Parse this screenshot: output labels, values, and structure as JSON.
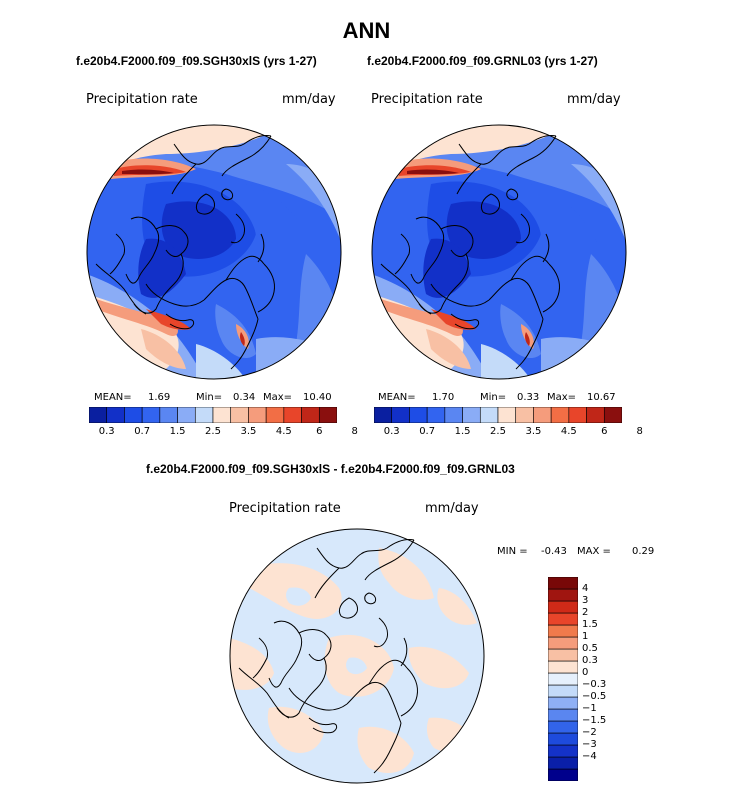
{
  "header": {
    "title": "ANN",
    "subtitle_left": "f.e20b4.F2000.f09_f09.SGH30xlS (yrs 1-27)",
    "subtitle_right": "f.e20b4.F2000.f09_f09.GRNL03 (yrs 1-27)",
    "diff_title": "f.e20b4.F2000.f09_f09.SGH30xlS - f.e20b4.F2000.f09_f09.GRNL03"
  },
  "panels": [
    {
      "field": "Precipitation rate",
      "units": "mm/day",
      "stats": {
        "mean_label": "MEAN=",
        "mean": "1.69",
        "min_label": "Min=",
        "min": "0.34",
        "max_label": "Max=",
        "max": "10.40"
      }
    },
    {
      "field": "Precipitation rate",
      "units": "mm/day",
      "stats": {
        "mean_label": "MEAN=",
        "mean": "1.70",
        "min_label": "Min=",
        "min": "0.33",
        "max_label": "Max=",
        "max": "10.67"
      }
    }
  ],
  "diff_panel": {
    "field": "Precipitation rate",
    "units": "mm/day",
    "minmax": {
      "min_label": "MIN =",
      "min": "-0.43",
      "max_label": "MAX =",
      "max": "0.29"
    }
  },
  "colorbar_top": {
    "colors": [
      "#0a1fa0",
      "#1230c8",
      "#1e4de6",
      "#3264f0",
      "#5a86f2",
      "#8aacf6",
      "#c4dbf9",
      "#fde3d2",
      "#f8c0a4",
      "#f59c7c",
      "#f26e45",
      "#e8452a",
      "#c02618",
      "#8a0f0e"
    ],
    "labels": [
      "0.3",
      "0.7",
      "1.5",
      "2.5",
      "3.5",
      "4.5",
      "6",
      "8"
    ]
  },
  "colorbar_diff": {
    "colors": [
      "#00008c",
      "#0a1fa8",
      "#1432c8",
      "#1e4bdc",
      "#3264ea",
      "#5a86f0",
      "#8fb0f5",
      "#c4dbf9",
      "#e6f0fc",
      "#fde3d2",
      "#f8c0a4",
      "#f59c7c",
      "#f07a4c",
      "#e8452a",
      "#d02a18",
      "#a01510",
      "#780808"
    ],
    "labels": [
      "4",
      "3",
      "2",
      "1.5",
      "1",
      "0.5",
      "0.3",
      "0",
      "−0.3",
      "−0.5",
      "−1",
      "−1.5",
      "−2",
      "−3",
      "−4"
    ]
  },
  "chart_data": [
    {
      "type": "heatmap",
      "projection": "polar stereographic (North Pole)",
      "title": "f.e20b4.F2000.f09_f09.SGH30xlS (yrs 1-27)",
      "variable": "Precipitation rate",
      "units": "mm/day",
      "mean": 1.69,
      "min": 0.34,
      "max": 10.4,
      "contour_levels": [
        0.3,
        0.7,
        1.5,
        2.5,
        3.5,
        4.5,
        6,
        8
      ]
    },
    {
      "type": "heatmap",
      "projection": "polar stereographic (North Pole)",
      "title": "f.e20b4.F2000.f09_f09.GRNL03 (yrs 1-27)",
      "variable": "Precipitation rate",
      "units": "mm/day",
      "mean": 1.7,
      "min": 0.33,
      "max": 10.67,
      "contour_levels": [
        0.3,
        0.7,
        1.5,
        2.5,
        3.5,
        4.5,
        6,
        8
      ]
    },
    {
      "type": "heatmap",
      "projection": "polar stereographic (North Pole)",
      "title": "f.e20b4.F2000.f09_f09.SGH30xlS - f.e20b4.F2000.f09_f09.GRNL03",
      "variable": "Precipitation rate",
      "units": "mm/day",
      "min": -0.43,
      "max": 0.29,
      "contour_levels": [
        -4,
        -3,
        -2,
        -1.5,
        -1,
        -0.5,
        -0.3,
        0,
        0.3,
        0.5,
        1,
        1.5,
        2,
        3,
        4
      ]
    }
  ]
}
